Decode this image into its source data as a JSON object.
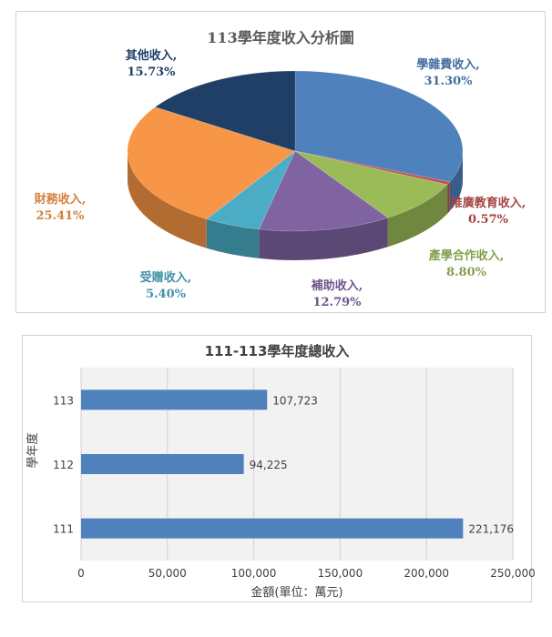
{
  "chart_data": [
    {
      "type": "pie",
      "title": "113學年度收入分析圖",
      "slices": [
        {
          "label": "學雜費收入,",
          "value": 31.3,
          "pct": "31.30%",
          "color": "#4F81BD"
        },
        {
          "label": "推廣教育收入,",
          "value": 0.57,
          "pct": "0.57%",
          "color": "#C0504D"
        },
        {
          "label": "產學合作收入,",
          "value": 8.8,
          "pct": "8.80%",
          "color": "#9BBB59"
        },
        {
          "label": "補助收入,",
          "value": 12.79,
          "pct": "12.79%",
          "color": "#8064A2"
        },
        {
          "label": "受贈收入,",
          "value": 5.4,
          "pct": "5.40%",
          "color": "#4BACC6"
        },
        {
          "label": "財務收入,",
          "value": 25.41,
          "pct": "25.41%",
          "color": "#F79646"
        },
        {
          "label": "其他收入,",
          "value": 15.73,
          "pct": "15.73%",
          "color": "#1F3F66"
        }
      ]
    },
    {
      "type": "bar",
      "orientation": "horizontal",
      "title": "111-113學年度總收入",
      "categories": [
        "113",
        "112",
        "111"
      ],
      "values": [
        107723,
        94225,
        221176
      ],
      "value_labels": [
        "107,723",
        "94,225",
        "221,176"
      ],
      "xlabel": "金額(單位：萬元)",
      "ylabel": "學年度",
      "xlim": [
        0,
        250000
      ],
      "x_ticks": [
        "0",
        "50,000",
        "100,000",
        "150,000",
        "200,000",
        "250,000"
      ],
      "bar_color": "#4F81BD",
      "grid": true
    }
  ]
}
